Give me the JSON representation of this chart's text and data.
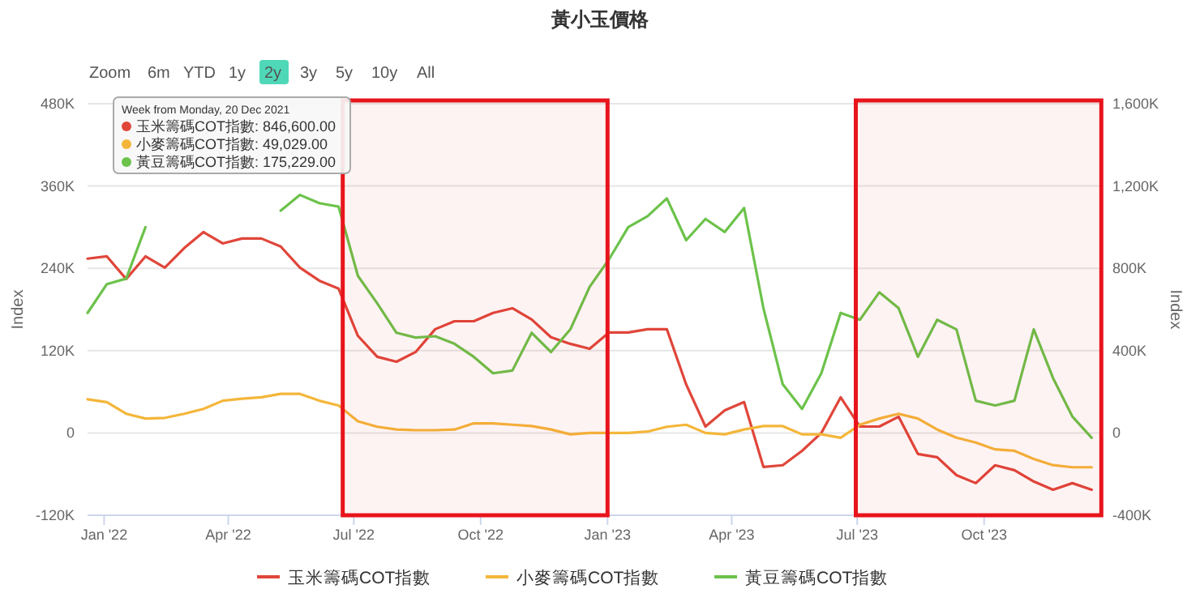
{
  "chart_data": {
    "type": "line",
    "title": "黃小玉價格",
    "ylabel": "Index",
    "y2label": "Index",
    "x": [
      "2021-12-20",
      "2022-01-03",
      "2022-01-17",
      "2022-01-31",
      "2022-02-14",
      "2022-02-28",
      "2022-03-14",
      "2022-03-28",
      "2022-04-11",
      "2022-04-25",
      "2022-05-09",
      "2022-05-23",
      "2022-06-06",
      "2022-06-20",
      "2022-07-04",
      "2022-07-18",
      "2022-08-01",
      "2022-08-15",
      "2022-08-29",
      "2022-09-12",
      "2022-09-26",
      "2022-10-10",
      "2022-10-24",
      "2022-11-07",
      "2022-11-21",
      "2022-12-05",
      "2022-12-19",
      "2023-01-02",
      "2023-01-16",
      "2023-01-30",
      "2023-02-13",
      "2023-02-27",
      "2023-03-13",
      "2023-03-27",
      "2023-04-10",
      "2023-04-24",
      "2023-05-08",
      "2023-05-22",
      "2023-06-05",
      "2023-06-19",
      "2023-07-03",
      "2023-07-17",
      "2023-07-31",
      "2023-08-14",
      "2023-08-28",
      "2023-09-11",
      "2023-09-25",
      "2023-10-09",
      "2023-10-23",
      "2023-11-06",
      "2023-11-20",
      "2023-12-04",
      "2023-12-18"
    ],
    "series": [
      {
        "name": "玉米籌碼COT指數",
        "color": "#e0463a",
        "axis": "y2",
        "values": [
          847,
          858,
          748,
          858,
          803,
          898,
          976,
          921,
          945,
          945,
          906,
          803,
          740,
          701,
          472,
          370,
          346,
          394,
          504,
          543,
          543,
          583,
          606,
          551,
          465,
          433,
          409,
          488,
          488,
          504,
          504,
          236,
          31,
          110,
          150,
          -165,
          -157,
          -87,
          0,
          173,
          31,
          31,
          79,
          -102,
          -118,
          -205,
          -244,
          -157,
          -181,
          -236,
          -276,
          -244,
          -276
        ]
      },
      {
        "name": "小麥籌碼COT指數",
        "color": "#f4b63a",
        "values": [
          49,
          45,
          28,
          21,
          22,
          28,
          35,
          47,
          50,
          52,
          57,
          57,
          47,
          40,
          17,
          9,
          5,
          4,
          4,
          5,
          14,
          14,
          12,
          10,
          5,
          -2,
          0,
          0,
          0,
          2,
          9,
          12,
          0,
          -2,
          5,
          10,
          10,
          -2,
          -2,
          -7,
          12,
          21,
          28,
          21,
          5,
          -7,
          -14,
          -24,
          -26,
          -38,
          -47,
          -50,
          -50
        ]
      },
      {
        "name": "黃豆籌碼COT指數",
        "color": "#6cc24a",
        "values": [
          175,
          217,
          225,
          300,
          null,
          null,
          null,
          null,
          null,
          null,
          324,
          347,
          335,
          330,
          229,
          189,
          146,
          139,
          141,
          130,
          111,
          87,
          91,
          146,
          118,
          151,
          213,
          253,
          300,
          316,
          342,
          281,
          312,
          293,
          328,
          182,
          71,
          35,
          87,
          175,
          165,
          205,
          182,
          111,
          165,
          151,
          47,
          40,
          47,
          151,
          80,
          24,
          -7
        ]
      }
    ],
    "xlim": [
      "2021-12-20",
      "2023-12-26"
    ],
    "xticks": [
      {
        "value": "2022-01-01",
        "label": "Jan '22"
      },
      {
        "value": "2022-04-01",
        "label": "Apr '22"
      },
      {
        "value": "2022-07-01",
        "label": "Jul '22"
      },
      {
        "value": "2022-10-01",
        "label": "Oct '22"
      },
      {
        "value": "2023-01-01",
        "label": "Jan '23"
      },
      {
        "value": "2023-04-01",
        "label": "Apr '23"
      },
      {
        "value": "2023-07-01",
        "label": "Jul '23"
      },
      {
        "value": "2023-10-01",
        "label": "Oct '23"
      }
    ],
    "ylim": [
      -120,
      480
    ],
    "yticks": [
      {
        "value": -120,
        "label": "-120K"
      },
      {
        "value": 0,
        "label": "0"
      },
      {
        "value": 120,
        "label": "120K"
      },
      {
        "value": 240,
        "label": "240K"
      },
      {
        "value": 360,
        "label": "360K"
      },
      {
        "value": 480,
        "label": "480K"
      }
    ],
    "y2lim": [
      -400,
      1600
    ],
    "y2ticks": [
      {
        "value": -400,
        "label": "-400K"
      },
      {
        "value": 0,
        "label": "0"
      },
      {
        "value": 400,
        "label": "400K"
      },
      {
        "value": 800,
        "label": "800K"
      },
      {
        "value": 1200,
        "label": "1,200K"
      },
      {
        "value": 1600,
        "label": "1,600K"
      }
    ],
    "grid": "y",
    "legend": "bottom",
    "bands": [
      {
        "axis": "x",
        "from": "2022-06-23",
        "to": "2023-01-01",
        "color": "#e8141c"
      },
      {
        "axis": "x",
        "from": "2023-06-30",
        "to": "2023-12-25",
        "color": "#e8141c"
      }
    ],
    "annotations": [
      "Zoom",
      "6m",
      "YTD",
      "1y",
      "2y",
      "3y",
      "5y",
      "10y",
      "All",
      "Week from Monday, 20 Dec 2021",
      "玉米籌碼COT指數: 846,600.00",
      "小麥籌碼COT指數: 49,029.00",
      "黃豆籌碼COT指數: 175,229.00"
    ]
  }
}
